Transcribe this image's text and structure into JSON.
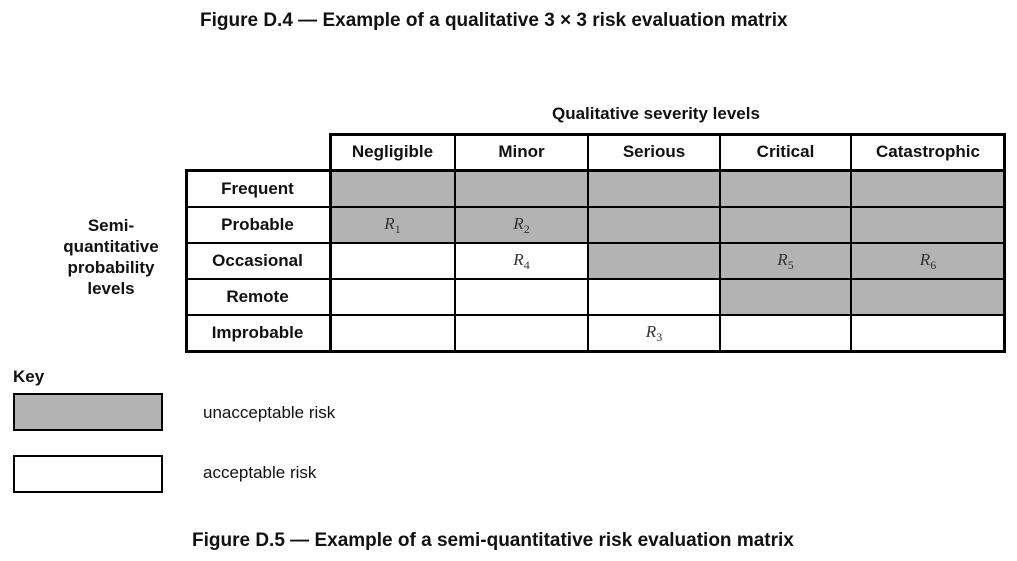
{
  "figure_d4_caption": "Figure D.4 — Example of a qualitative 3 × 3 risk evaluation matrix",
  "figure_d5_caption": "Figure D.5 — Example of a semi-quantitative risk evaluation matrix",
  "severity_header": "Qualitative severity levels",
  "probability_header_lines": [
    "Semi-",
    "quantitative",
    "probability",
    "levels"
  ],
  "severity_levels": [
    "Negligible",
    "Minor",
    "Serious",
    "Critical",
    "Catastrophic"
  ],
  "probability_levels": [
    "Frequent",
    "Probable",
    "Occasional",
    "Remote",
    "Improbable"
  ],
  "matrix": [
    [
      {
        "risk": "",
        "sub": "",
        "status": "unacceptable"
      },
      {
        "risk": "",
        "sub": "",
        "status": "unacceptable"
      },
      {
        "risk": "",
        "sub": "",
        "status": "unacceptable"
      },
      {
        "risk": "",
        "sub": "",
        "status": "unacceptable"
      },
      {
        "risk": "",
        "sub": "",
        "status": "unacceptable"
      }
    ],
    [
      {
        "risk": "R",
        "sub": "1",
        "status": "unacceptable"
      },
      {
        "risk": "R",
        "sub": "2",
        "status": "unacceptable"
      },
      {
        "risk": "",
        "sub": "",
        "status": "unacceptable"
      },
      {
        "risk": "",
        "sub": "",
        "status": "unacceptable"
      },
      {
        "risk": "",
        "sub": "",
        "status": "unacceptable"
      }
    ],
    [
      {
        "risk": "",
        "sub": "",
        "status": "acceptable"
      },
      {
        "risk": "R",
        "sub": "4",
        "status": "acceptable"
      },
      {
        "risk": "",
        "sub": "",
        "status": "unacceptable"
      },
      {
        "risk": "R",
        "sub": "5",
        "status": "unacceptable"
      },
      {
        "risk": "R",
        "sub": "6",
        "status": "unacceptable"
      }
    ],
    [
      {
        "risk": "",
        "sub": "",
        "status": "acceptable"
      },
      {
        "risk": "",
        "sub": "",
        "status": "acceptable"
      },
      {
        "risk": "",
        "sub": "",
        "status": "acceptable"
      },
      {
        "risk": "",
        "sub": "",
        "status": "unacceptable"
      },
      {
        "risk": "",
        "sub": "",
        "status": "unacceptable"
      }
    ],
    [
      {
        "risk": "",
        "sub": "",
        "status": "acceptable"
      },
      {
        "risk": "",
        "sub": "",
        "status": "acceptable"
      },
      {
        "risk": "R",
        "sub": "3",
        "status": "acceptable"
      },
      {
        "risk": "",
        "sub": "",
        "status": "acceptable"
      },
      {
        "risk": "",
        "sub": "",
        "status": "acceptable"
      }
    ]
  ],
  "key": {
    "title": "Key",
    "unacceptable_label": "unacceptable risk",
    "acceptable_label": "acceptable risk"
  },
  "colors": {
    "unacceptable": "#b3b3b3",
    "acceptable": "#ffffff"
  }
}
